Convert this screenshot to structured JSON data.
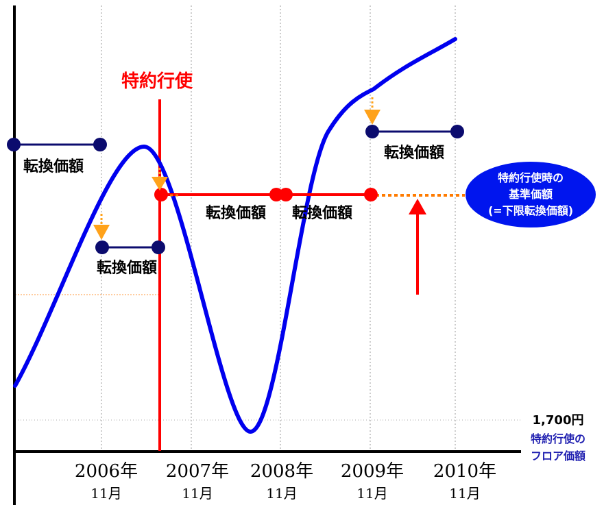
{
  "chart_data": {
    "type": "line",
    "title": "特約行使",
    "x_ticks": [
      {
        "year": "2006年",
        "month": "11月"
      },
      {
        "year": "2007年",
        "month": "11月"
      },
      {
        "year": "2008年",
        "month": "11月"
      },
      {
        "year": "2009年",
        "month": "11月"
      },
      {
        "year": "2010年",
        "month": "11月"
      }
    ],
    "floor_value": "1,700円",
    "floor_label_line1": "特約行使の",
    "floor_label_line2": "フロア価額",
    "conversion_label": "転換価額",
    "callout": {
      "line1": "特約行使時の",
      "line2": "基準価額",
      "line3": "(=下限転換価額)"
    },
    "colors": {
      "curve": "#0000ee",
      "segment": "#0b0b6e",
      "exercise": "#ff0000",
      "arrow_down": "#ffa21a",
      "dotted": "#ff7b00",
      "callout_bg": "#0015ee",
      "floor_text": "#1f1fb0"
    }
  }
}
